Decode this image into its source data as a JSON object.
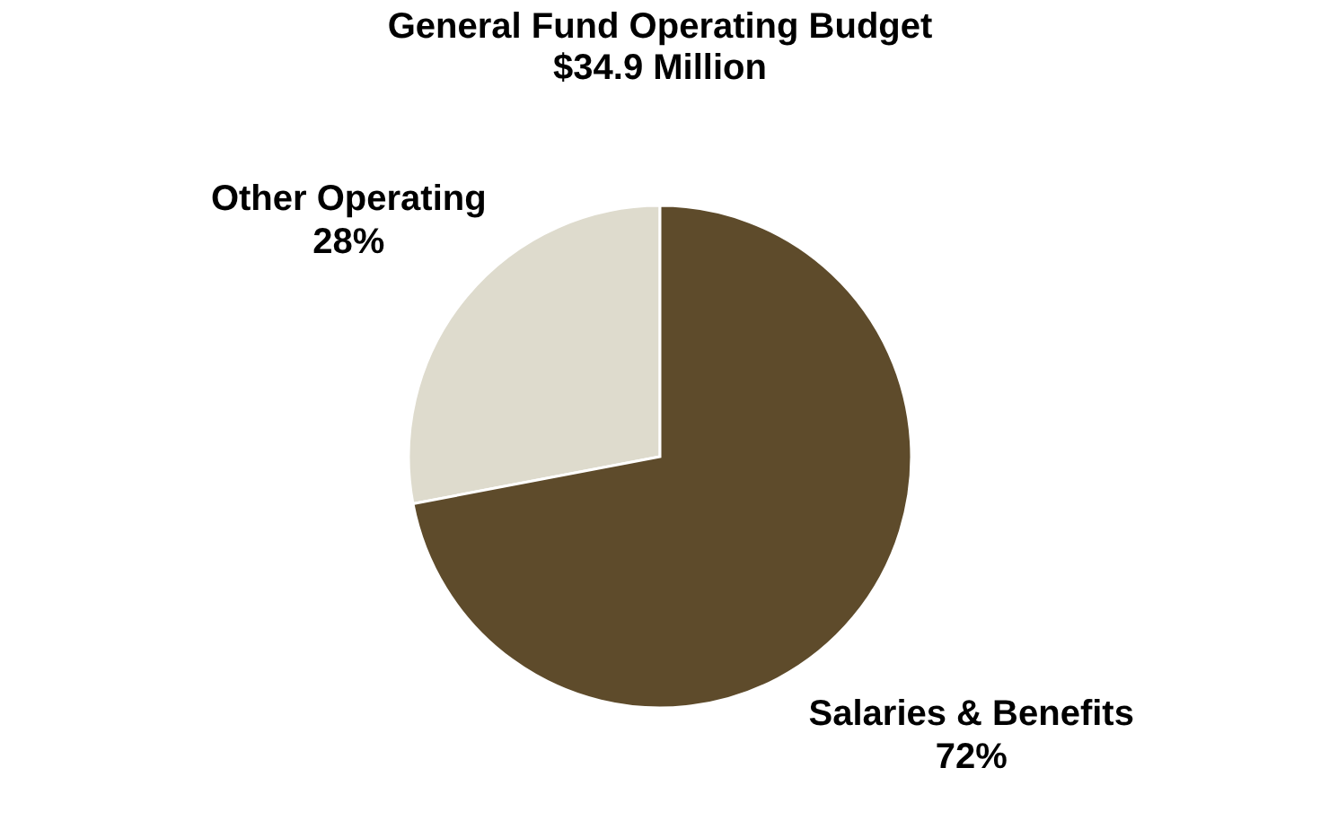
{
  "chart_data": {
    "type": "pie",
    "title": "General Fund Operating Budget",
    "subtitle": "$34.9 Million",
    "categories": [
      "Other Operating",
      "Salaries & Benefits"
    ],
    "values": [
      28,
      72
    ],
    "colors": [
      "#dedbcd",
      "#5e4b2b"
    ],
    "value_labels": [
      "28%",
      "72%"
    ],
    "legend": false
  }
}
